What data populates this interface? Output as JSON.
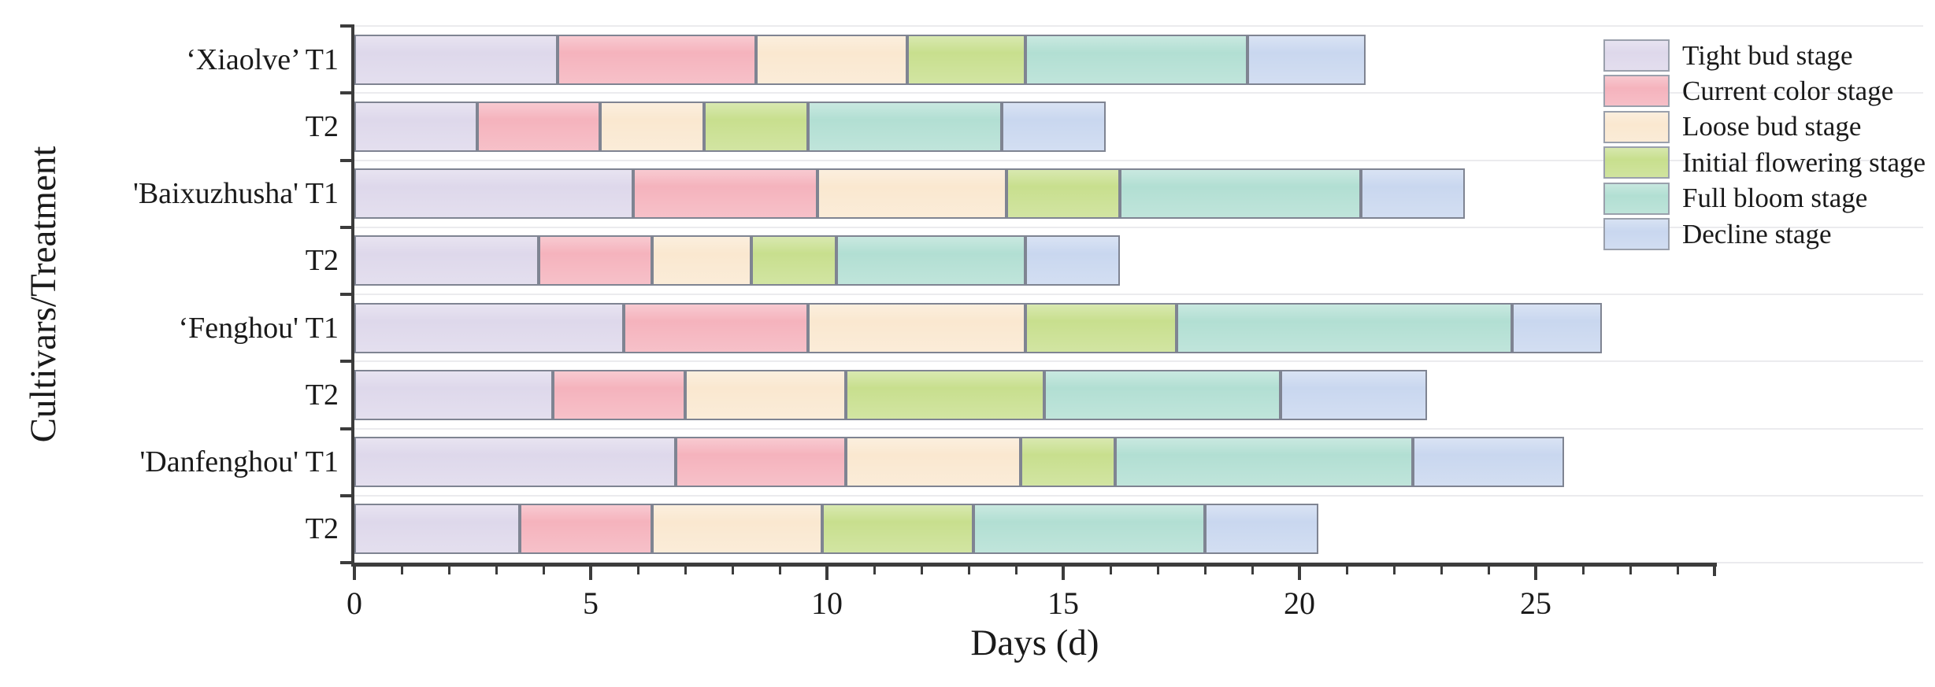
{
  "chart_data": {
    "type": "bar",
    "orientation": "horizontal",
    "stacked": true,
    "title": "",
    "xlabel": "Days (d)",
    "ylabel": "Cultivars/Treatment",
    "xlim": [
      0,
      28.8
    ],
    "x_major_ticks": [
      0,
      5,
      10,
      15,
      20,
      25
    ],
    "x_minor_tick_interval": 1,
    "grid": "faint-horizontal",
    "legend_position": "top-right",
    "categories": [
      "‘Xiaolve’ T1",
      "T2",
      "'Baixuzhusha' T1",
      "T2",
      "‘Fenghou' T1",
      "T2",
      "'Danfenghou' T1",
      "T2"
    ],
    "series": [
      {
        "name": "Tight bud stage",
        "color": "#DED8EB",
        "values": [
          4.3,
          2.6,
          5.9,
          3.9,
          5.7,
          4.2,
          6.8,
          3.5
        ]
      },
      {
        "name": "Current color stage",
        "color": "#F5B3BD",
        "values": [
          4.2,
          2.6,
          3.9,
          2.4,
          3.9,
          2.8,
          3.6,
          2.8
        ]
      },
      {
        "name": "Loose bud stage",
        "color": "#FAE8D0",
        "values": [
          3.2,
          2.2,
          4.0,
          2.1,
          4.6,
          3.4,
          3.7,
          3.6
        ]
      },
      {
        "name": "Initial flowering stage",
        "color": "#C8DF8E",
        "values": [
          2.5,
          2.2,
          2.4,
          1.8,
          3.2,
          4.2,
          2.0,
          3.2
        ]
      },
      {
        "name": "Full bloom stage",
        "color": "#B2DFD3",
        "values": [
          4.7,
          4.1,
          5.1,
          4.0,
          7.1,
          5.0,
          6.3,
          4.9
        ]
      },
      {
        "name": "Decline stage",
        "color": "#C9D7EF",
        "values": [
          2.5,
          2.2,
          2.2,
          2.0,
          1.9,
          3.1,
          3.2,
          2.4
        ]
      }
    ],
    "bar_totals_days": [
      21.4,
      15.9,
      23.5,
      16.2,
      26.4,
      22.7,
      25.6,
      20.4
    ]
  }
}
